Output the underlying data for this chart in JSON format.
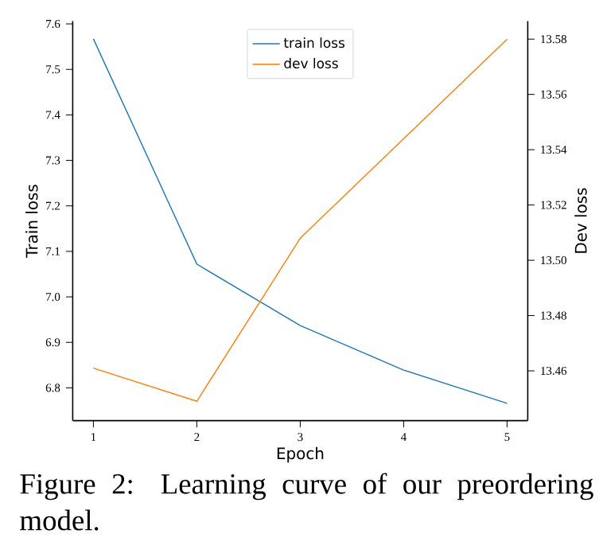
{
  "chart_data": {
    "type": "line",
    "xlabel": "Epoch",
    "ylabel": "Train loss",
    "y2label": "Dev loss",
    "x": [
      1,
      2,
      3,
      4,
      5
    ],
    "series": [
      {
        "name": "train loss",
        "color": "#1f77b4",
        "values": [
          7.567,
          7.072,
          6.937,
          6.839,
          6.766
        ]
      },
      {
        "name": "dev loss",
        "color": "#ff7f0e",
        "axis": "y2",
        "values": [
          13.461,
          13.449,
          13.508,
          13.544,
          13.58
        ]
      }
    ],
    "xlim": [
      0.8,
      5.2
    ],
    "xticks": [
      1,
      2,
      3,
      4,
      5
    ],
    "ylim": [
      6.728,
      7.606
    ],
    "yticks": [
      6.8,
      6.9,
      {
        "value": 7,
        "label": "7.0"
      },
      7.1,
      7.2,
      7.3,
      7.4,
      7.5,
      7.6
    ],
    "y2lim": [
      13.442,
      13.5865
    ],
    "y2ticks": [
      13.46,
      13.48,
      {
        "value": 13.5,
        "label": "13.50"
      },
      13.52,
      13.54,
      13.56,
      13.58
    ],
    "legend": "top",
    "grid": false,
    "annotations": [
      "Figure 2:  Learning curve of our preordering model."
    ]
  }
}
